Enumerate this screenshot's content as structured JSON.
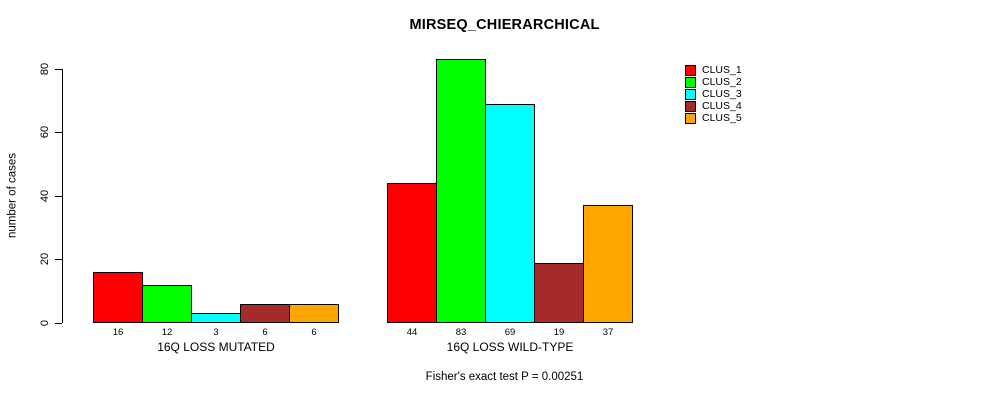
{
  "title": "MIRSEQ_CHIERARCHICAL",
  "footer": "Fisher's exact test P = 0.00251",
  "y_axis": {
    "label": "number of cases",
    "ticks": [
      0,
      20,
      40,
      60,
      80
    ]
  },
  "legend": {
    "entries": [
      {
        "label": "CLUS_1",
        "color": "#FF0000"
      },
      {
        "label": "CLUS_2",
        "color": "#00FF00"
      },
      {
        "label": "CLUS_3",
        "color": "#00FFFF"
      },
      {
        "label": "CLUS_4",
        "color": "#A52A2A"
      },
      {
        "label": "CLUS_5",
        "color": "#FFA500"
      }
    ]
  },
  "chart_data": {
    "type": "bar",
    "title": "MIRSEQ_CHIERARCHICAL",
    "ylabel": "number of cases",
    "ylim": [
      0,
      83
    ],
    "y_ticks": [
      0,
      20,
      40,
      60,
      80
    ],
    "grid": false,
    "legend_position": "top-right",
    "bar_value_labels_shown": true,
    "series": [
      "CLUS_1",
      "CLUS_2",
      "CLUS_3",
      "CLUS_4",
      "CLUS_5"
    ],
    "colors": [
      "#FF0000",
      "#00FF00",
      "#00FFFF",
      "#A52A2A",
      "#FFA500"
    ],
    "groups": [
      {
        "label": "16Q LOSS MUTATED",
        "values": [
          16,
          12,
          3,
          6,
          6
        ]
      },
      {
        "label": "16Q LOSS WILD-TYPE",
        "values": [
          44,
          83,
          69,
          19,
          37
        ]
      }
    ],
    "annotation": "Fisher's exact test P = 0.00251"
  }
}
